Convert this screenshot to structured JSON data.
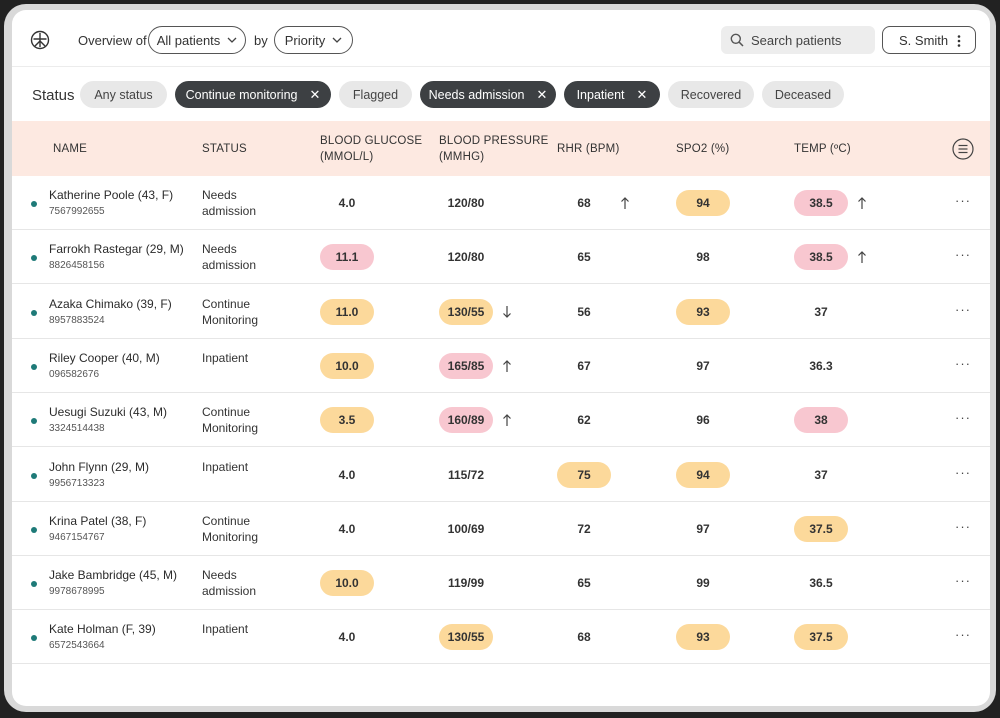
{
  "header": {
    "overview_label": "Overview of",
    "scope_select": "All patients",
    "by_label": "by",
    "sort_select": "Priority",
    "search_placeholder": "Search patients",
    "user": "S. Smith"
  },
  "status_filter": {
    "label": "Status",
    "chips": [
      {
        "label": "Any status",
        "active": false
      },
      {
        "label": "Continue monitoring",
        "active": true
      },
      {
        "label": "Flagged",
        "active": false
      },
      {
        "label": "Needs admission",
        "active": true
      },
      {
        "label": "Inpatient",
        "active": true
      },
      {
        "label": "Recovered",
        "active": false
      },
      {
        "label": "Deceased",
        "active": false
      }
    ]
  },
  "table": {
    "headers": {
      "name": "NAME",
      "status": "STATUS",
      "glucose": "BLOOD GLUCOSE (MMOL/L)",
      "glucose_l1": "BLOOD GLUCOSE",
      "glucose_l2": "(MMOL/L)",
      "bp_l1": "BLOOD PRESSURE",
      "bp_l2": "(MMHG)",
      "rhr": "RHR (BPM)",
      "spo2": "SPO2 (%)",
      "temp": "TEMP (ºC)"
    },
    "colors": {
      "yellow": "#fcd99b",
      "pink": "#f8c7d0",
      "dot": "#1e7a78"
    },
    "rows": [
      {
        "name": "Katherine Poole (43, F)",
        "id": "7567992655",
        "status": "Needs admission",
        "glucose": {
          "v": "4.0",
          "hl": ""
        },
        "bp": {
          "v": "120/80",
          "hl": "",
          "trend": ""
        },
        "rhr": {
          "v": "68",
          "hl": "",
          "trend": "up"
        },
        "spo2": {
          "v": "94",
          "hl": "yellow"
        },
        "temp": {
          "v": "38.5",
          "hl": "pink",
          "trend": "up"
        }
      },
      {
        "name": "Farrokh Rastegar (29, M)",
        "id": "8826458156",
        "status": "Needs admission",
        "glucose": {
          "v": "11.1",
          "hl": "pink"
        },
        "bp": {
          "v": "120/80",
          "hl": "",
          "trend": ""
        },
        "rhr": {
          "v": "65",
          "hl": "",
          "trend": ""
        },
        "spo2": {
          "v": "98",
          "hl": ""
        },
        "temp": {
          "v": "38.5",
          "hl": "pink",
          "trend": "up"
        }
      },
      {
        "name": "Azaka Chimako (39, F)",
        "id": "8957883524",
        "status": "Continue Monitoring",
        "glucose": {
          "v": "11.0",
          "hl": "yellow"
        },
        "bp": {
          "v": "130/55",
          "hl": "yellow",
          "trend": "down"
        },
        "rhr": {
          "v": "56",
          "hl": "",
          "trend": ""
        },
        "spo2": {
          "v": "93",
          "hl": "yellow"
        },
        "temp": {
          "v": "37",
          "hl": "",
          "trend": ""
        }
      },
      {
        "name": "Riley Cooper (40, M)",
        "id": "096582676",
        "status": "Inpatient",
        "glucose": {
          "v": "10.0",
          "hl": "yellow"
        },
        "bp": {
          "v": "165/85",
          "hl": "pink",
          "trend": "up"
        },
        "rhr": {
          "v": "67",
          "hl": "",
          "trend": ""
        },
        "spo2": {
          "v": "97",
          "hl": ""
        },
        "temp": {
          "v": "36.3",
          "hl": "",
          "trend": ""
        }
      },
      {
        "name": "Uesugi Suzuki (43, M)",
        "id": "3324514438",
        "status": "Continue Monitoring",
        "glucose": {
          "v": "3.5",
          "hl": "yellow"
        },
        "bp": {
          "v": "160/89",
          "hl": "pink",
          "trend": "up"
        },
        "rhr": {
          "v": "62",
          "hl": "",
          "trend": ""
        },
        "spo2": {
          "v": "96",
          "hl": ""
        },
        "temp": {
          "v": "38",
          "hl": "pink",
          "trend": ""
        }
      },
      {
        "name": "John Flynn (29, M)",
        "id": "9956713323",
        "status": "Inpatient",
        "glucose": {
          "v": "4.0",
          "hl": ""
        },
        "bp": {
          "v": "115/72",
          "hl": "",
          "trend": ""
        },
        "rhr": {
          "v": "75",
          "hl": "yellow",
          "trend": ""
        },
        "spo2": {
          "v": "94",
          "hl": "yellow"
        },
        "temp": {
          "v": "37",
          "hl": "",
          "trend": ""
        }
      },
      {
        "name": "Krina Patel (38, F)",
        "id": "9467154767",
        "status": "Continue Monitoring",
        "glucose": {
          "v": "4.0",
          "hl": ""
        },
        "bp": {
          "v": "100/69",
          "hl": "",
          "trend": ""
        },
        "rhr": {
          "v": "72",
          "hl": "",
          "trend": ""
        },
        "spo2": {
          "v": "97",
          "hl": ""
        },
        "temp": {
          "v": "37.5",
          "hl": "yellow",
          "trend": ""
        }
      },
      {
        "name": "Jake Bambridge (45, M)",
        "id": "9978678995",
        "status": "Needs admission",
        "glucose": {
          "v": "10.0",
          "hl": "yellow"
        },
        "bp": {
          "v": "119/99",
          "hl": "",
          "trend": ""
        },
        "rhr": {
          "v": "65",
          "hl": "",
          "trend": ""
        },
        "spo2": {
          "v": "99",
          "hl": ""
        },
        "temp": {
          "v": "36.5",
          "hl": "",
          "trend": ""
        }
      },
      {
        "name": "Kate Holman (F, 39)",
        "id": "6572543664",
        "status": "Inpatient",
        "glucose": {
          "v": "4.0",
          "hl": ""
        },
        "bp": {
          "v": "130/55",
          "hl": "yellow",
          "trend": ""
        },
        "rhr": {
          "v": "68",
          "hl": "",
          "trend": ""
        },
        "spo2": {
          "v": "93",
          "hl": "yellow"
        },
        "temp": {
          "v": "37.5",
          "hl": "yellow",
          "trend": ""
        }
      }
    ]
  }
}
